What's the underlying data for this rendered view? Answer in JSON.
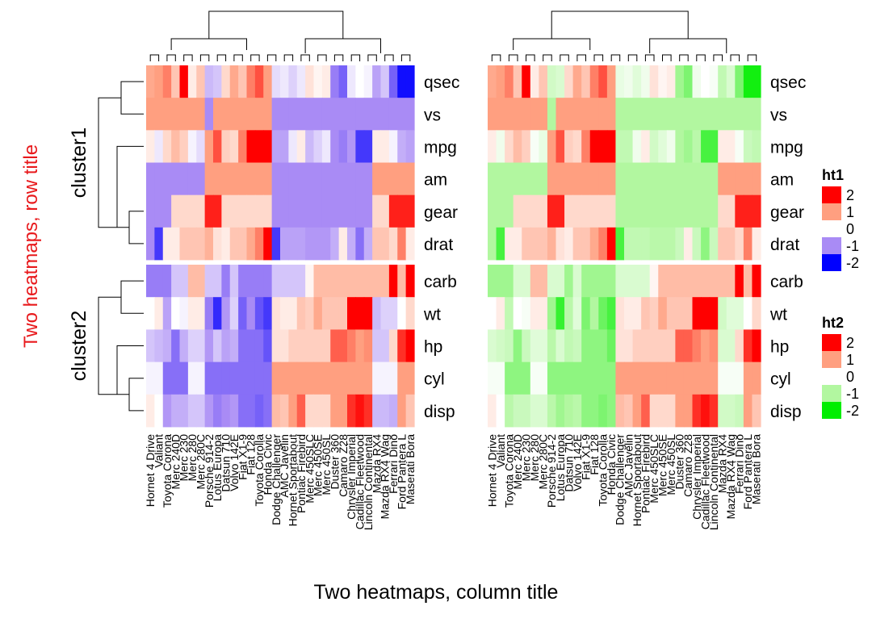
{
  "chart_data": {
    "type": "heatmap",
    "row_title": "Two heatmaps, row title",
    "column_title": "Two heatmaps, column title",
    "row_split": [
      {
        "title": "cluster1",
        "rows": [
          "qsec",
          "vs",
          "mpg",
          "am",
          "gear",
          "drat"
        ]
      },
      {
        "title": "cluster2",
        "rows": [
          "carb",
          "wt",
          "hp",
          "cyl",
          "disp"
        ]
      }
    ],
    "columns": [
      "Hornet 4 Drive",
      "Valiant",
      "Toyota Corona",
      "Merc 240D",
      "Merc 230",
      "Merc 280",
      "Merc 280C",
      "Porsche 914-2",
      "Lotus Europa",
      "Datsun 710",
      "Volvo 142E",
      "Fiat X1-9",
      "Fiat 128",
      "Toyota Corolla",
      "Honda Civic",
      "Dodge Challenger",
      "AMC Javelin",
      "Hornet Sportabout",
      "Pontiac Firebird",
      "Merc 450SLC",
      "Merc 450SE",
      "Merc 450SL",
      "Duster 360",
      "Camaro Z28",
      "Chrysler Imperial",
      "Cadillac Fleetwood",
      "Lincoln Continental",
      "Mazda RX4",
      "Mazda RX4 Wag",
      "Ferrari Dino",
      "Ford Pantera L",
      "Maserati Bora"
    ],
    "heatmaps": [
      {
        "name": "ht1",
        "legend_title": "ht1",
        "colors": {
          "neg2": "#0000FF",
          "neg1": "#A98BF5",
          "zero": "#FFFFFF",
          "pos1": "#FF9F80",
          "pos2": "#FF0000"
        }
      },
      {
        "name": "ht2",
        "legend_title": "ht2",
        "colors": {
          "neg2": "#00EE00",
          "neg1": "#B2F7A0",
          "zero": "#FFFFFF",
          "pos1": "#FF9F80",
          "pos2": "#FF0000"
        }
      }
    ],
    "legend_breaks": [
      "2",
      "1",
      "0",
      "-1",
      "-2"
    ],
    "values": {
      "qsec": [
        0.9,
        1.0,
        1.2,
        0.6,
        2.8,
        0.2,
        0.6,
        -0.6,
        -0.5,
        0.4,
        0.9,
        0.6,
        1.2,
        1.5,
        1.0,
        -0.3,
        -0.2,
        -0.4,
        -0.2,
        0.3,
        0.1,
        0.2,
        -1.1,
        -1.3,
        -0.2,
        0.0,
        -0.1,
        -0.8,
        -0.5,
        -1.3,
        -1.9,
        -1.9
      ],
      "vs": [
        1,
        1,
        1,
        1,
        1,
        1,
        1,
        -1,
        1,
        1,
        1,
        1,
        1,
        1,
        1,
        -1,
        -1,
        -1,
        -1,
        -1,
        -1,
        -1,
        -1,
        -1,
        -1,
        -1,
        -1,
        -1,
        -1,
        -1,
        -1,
        -1
      ],
      "mpg": [
        0.2,
        -0.2,
        0.4,
        0.7,
        0.5,
        -0.1,
        -0.3,
        1.0,
        1.5,
        0.5,
        0.4,
        1.2,
        2.3,
        2.3,
        2.0,
        -0.8,
        -0.8,
        -0.2,
        0.2,
        -0.6,
        -0.4,
        -0.2,
        -1.0,
        -1.1,
        -0.9,
        -1.6,
        -1.6,
        0.2,
        0.2,
        -0.1,
        -0.7,
        -0.8
      ],
      "am": [
        -1,
        -1,
        -1,
        -1,
        -1,
        -1,
        -1,
        1,
        1,
        1,
        1,
        1,
        1,
        1,
        1,
        -1,
        -1,
        -1,
        -1,
        -1,
        -1,
        -1,
        -1,
        -1,
        -1,
        -1,
        -1,
        1,
        1,
        1,
        1,
        1
      ],
      "gear": [
        -1,
        -1,
        -1,
        0.4,
        0.4,
        0.4,
        0.4,
        1.8,
        1.8,
        0.4,
        0.4,
        0.4,
        0.4,
        0.4,
        0.4,
        -1,
        -1,
        -1,
        -1,
        -1,
        -1,
        -1,
        -1,
        -1,
        -1,
        -1,
        -1,
        0.4,
        0.4,
        1.8,
        1.8,
        1.8
      ],
      "drat": [
        -1.0,
        -1.6,
        0.2,
        0.2,
        0.6,
        0.6,
        0.6,
        0.8,
        0.3,
        0.2,
        0.6,
        0.6,
        0.9,
        1.2,
        2.5,
        -1.6,
        -0.8,
        -0.8,
        -0.8,
        -0.9,
        -0.9,
        -0.9,
        -0.7,
        0.2,
        -0.7,
        -1.2,
        -0.7,
        0.6,
        0.6,
        0.4,
        1.2,
        0.2
      ],
      "carb": [
        -1.1,
        -1.1,
        -1.1,
        -0.5,
        -0.5,
        0.7,
        0.7,
        -0.5,
        -0.5,
        -1.1,
        -0.5,
        -1.1,
        -1.1,
        -1.1,
        -1.1,
        -0.5,
        -0.5,
        -0.5,
        -0.5,
        0.1,
        0.7,
        0.7,
        0.7,
        0.7,
        0.7,
        0.7,
        0.7,
        0.7,
        0.7,
        2.0,
        0.7,
        3.2
      ],
      "wt": [
        -0.0,
        0.2,
        -0.8,
        -0.0,
        -0.1,
        0.2,
        0.2,
        -1.1,
        -1.7,
        -0.9,
        -0.4,
        -1.3,
        -1.0,
        -1.4,
        -1.6,
        0.3,
        0.2,
        0.2,
        0.6,
        0.5,
        0.9,
        0.6,
        0.6,
        0.6,
        2.2,
        2.1,
        2.3,
        -0.6,
        -0.4,
        -0.4,
        -0.0,
        0.4
      ],
      "hp": [
        -0.5,
        -0.6,
        -0.7,
        -1.2,
        -0.7,
        -0.4,
        -0.4,
        -0.9,
        -0.5,
        -0.8,
        -0.7,
        -1.2,
        -1.2,
        -1.2,
        -1.4,
        0.3,
        0.3,
        0.5,
        0.5,
        0.5,
        0.5,
        0.5,
        1.4,
        1.4,
        1.2,
        1.0,
        1.1,
        -0.5,
        -0.5,
        0.4,
        1.7,
        2.7
      ],
      "cyl": [
        -0.1,
        -0.1,
        -1.2,
        -1.2,
        -1.2,
        -0.1,
        -0.1,
        -1.2,
        -1.2,
        -1.2,
        -1.2,
        -1.2,
        -1.2,
        -1.2,
        -1.2,
        1.0,
        1.0,
        1.0,
        1.0,
        1.0,
        1.0,
        1.0,
        1.0,
        1.0,
        1.0,
        1.0,
        1.0,
        -0.1,
        -0.1,
        -0.1,
        1.0,
        1.0
      ],
      "disp": [
        0.2,
        -0.0,
        -0.9,
        -0.7,
        -0.7,
        -0.5,
        -0.5,
        -0.9,
        -1.1,
        -1.0,
        -0.9,
        -1.2,
        -1.2,
        -1.3,
        -1.2,
        0.7,
        0.6,
        1.0,
        1.4,
        0.4,
        0.4,
        0.4,
        1.0,
        1.0,
        1.7,
        1.9,
        1.7,
        -0.6,
        -0.6,
        -0.7,
        1.0,
        0.6
      ]
    }
  }
}
